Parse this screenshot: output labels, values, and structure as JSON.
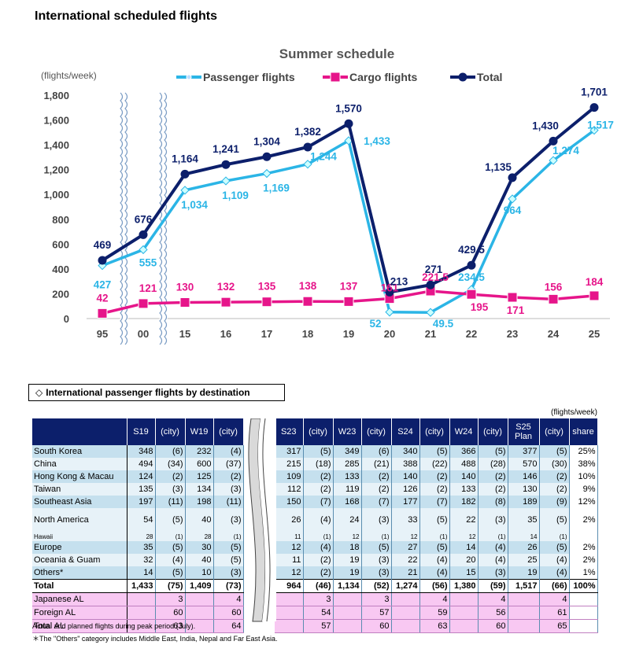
{
  "page_title": "International scheduled flights",
  "chart_data": {
    "type": "line",
    "title": "Summer schedule",
    "ylabel": "(flights/week)",
    "categories": [
      "95",
      "00",
      "15",
      "16",
      "17",
      "18",
      "19",
      "20",
      "21",
      "22",
      "23",
      "24",
      "25"
    ],
    "ylim": [
      0,
      1800
    ],
    "yticks": [
      "0",
      "200",
      "400",
      "600",
      "800",
      "1,000",
      "1,200",
      "1,400",
      "1,600",
      "1,800"
    ],
    "legend_position": "top",
    "grid": false,
    "series": [
      {
        "name": "Passenger flights",
        "color": "#2bb5e6",
        "values": [
          427,
          555,
          1034,
          1109,
          1169,
          1244,
          1433,
          52,
          49.5,
          234.5,
          964,
          1274,
          1517
        ],
        "labels": [
          "427",
          "555",
          "1,034",
          "1,109",
          "1,169",
          "1,244",
          "1,433",
          "52",
          "49.5",
          "234.5",
          "964",
          "1,274",
          "1,517"
        ]
      },
      {
        "name": "Cargo flights",
        "color": "#e6158a",
        "values": [
          42,
          121,
          130,
          132,
          135,
          138,
          137,
          161,
          221.5,
          195,
          171,
          156,
          184
        ],
        "labels": [
          "42",
          "121",
          "130",
          "132",
          "135",
          "138",
          "137",
          "161",
          "221.5",
          "195",
          "171",
          "156",
          "184"
        ]
      },
      {
        "name": "Total",
        "color": "#0c1f6b",
        "values": [
          469,
          676,
          1164,
          1241,
          1304,
          1382,
          1570,
          213,
          271,
          429.5,
          1135,
          1430,
          1701
        ],
        "labels": [
          "469",
          "676",
          "1,164",
          "1,241",
          "1,304",
          "1,382",
          "1,570",
          "213",
          "271",
          "429.5",
          "1,135",
          "1,430",
          "1,701"
        ]
      }
    ]
  },
  "table": {
    "caption": "International passenger flights by destination",
    "unit": "(flights/week)",
    "headers": [
      "",
      "S19",
      "(city)",
      "W19",
      "(city)",
      "",
      "S23",
      "(city)",
      "W23",
      "(city)",
      "S24",
      "(city)",
      "W24",
      "(city)",
      "S25\nPlan",
      "(city)",
      "share"
    ],
    "rows": [
      {
        "style": "blue",
        "cells": [
          "South Korea",
          "348",
          "(6)",
          "232",
          "(4)",
          "317",
          "(5)",
          "349",
          "(6)",
          "340",
          "(5)",
          "366",
          "(5)",
          "377",
          "(5)",
          "25%"
        ]
      },
      {
        "style": "white",
        "cells": [
          "China",
          "494",
          "(34)",
          "600",
          "(37)",
          "215",
          "(18)",
          "285",
          "(21)",
          "388",
          "(22)",
          "488",
          "(28)",
          "570",
          "(30)",
          "38%"
        ]
      },
      {
        "style": "blue",
        "cells": [
          "Hong Kong & Macau",
          "124",
          "(2)",
          "125",
          "(2)",
          "109",
          "(2)",
          "133",
          "(2)",
          "140",
          "(2)",
          "140",
          "(2)",
          "146",
          "(2)",
          "10%"
        ]
      },
      {
        "style": "white",
        "cells": [
          "Taiwan",
          "135",
          "(3)",
          "134",
          "(3)",
          "112",
          "(2)",
          "119",
          "(2)",
          "126",
          "(2)",
          "133",
          "(2)",
          "130",
          "(2)",
          "9%"
        ]
      },
      {
        "style": "blue",
        "cells": [
          "Southeast Asia",
          "197",
          "(11)",
          "198",
          "(11)",
          "150",
          "(7)",
          "168",
          "(7)",
          "177",
          "(7)",
          "182",
          "(8)",
          "189",
          "(9)",
          "12%"
        ]
      },
      {
        "style": "white tall",
        "cells": [
          "North America",
          "54",
          "(5)",
          "40",
          "(3)",
          "26",
          "(4)",
          "24",
          "(3)",
          "33",
          "(5)",
          "22",
          "(3)",
          "35",
          "(5)",
          "2%"
        ]
      },
      {
        "style": "white tiny",
        "cells": [
          "Hawaii",
          "28",
          "(1)",
          "28",
          "(1)",
          "11",
          "(1)",
          "12",
          "(1)",
          "12",
          "(1)",
          "12",
          "(1)",
          "14",
          "(1)",
          ""
        ]
      },
      {
        "style": "blue",
        "cells": [
          "Europe",
          "35",
          "(5)",
          "30",
          "(5)",
          "12",
          "(4)",
          "18",
          "(5)",
          "27",
          "(5)",
          "14",
          "(4)",
          "26",
          "(5)",
          "2%"
        ]
      },
      {
        "style": "white",
        "cells": [
          "Oceania & Guam",
          "32",
          "(4)",
          "40",
          "(5)",
          "11",
          "(2)",
          "19",
          "(3)",
          "22",
          "(4)",
          "20",
          "(4)",
          "25",
          "(4)",
          "2%"
        ]
      },
      {
        "style": "blue",
        "cells": [
          "Others*",
          "14",
          "(5)",
          "10",
          "(3)",
          "12",
          "(2)",
          "19",
          "(3)",
          "21",
          "(4)",
          "15",
          "(3)",
          "19",
          "(4)",
          "1%"
        ]
      },
      {
        "style": "total",
        "cells": [
          "Total",
          "1,433",
          "(75)",
          "1,409",
          "(73)",
          "964",
          "(46)",
          "1,134",
          "(52)",
          "1,274",
          "(56)",
          "1,380",
          "(59)",
          "1,517",
          "(66)",
          "100%"
        ]
      },
      {
        "style": "pink",
        "cells": [
          "Japanese AL",
          "",
          "3",
          "",
          "4",
          "",
          "3",
          "",
          "3",
          "",
          "4",
          "",
          "4",
          "",
          "4",
          ""
        ]
      },
      {
        "style": "pink",
        "cells": [
          "Foreign AL",
          "",
          "60",
          "",
          "60",
          "",
          "54",
          "",
          "57",
          "",
          "59",
          "",
          "56",
          "",
          "61",
          ""
        ]
      },
      {
        "style": "pink",
        "cells": [
          "Total AL",
          "",
          "63",
          "",
          "64",
          "",
          "57",
          "",
          "60",
          "",
          "63",
          "",
          "60",
          "",
          "65",
          ""
        ]
      }
    ]
  },
  "footnotes": [
    "Actual and planned flights during peak period (July).",
    "＊The \"Others\" category includes Middle East, India, Nepal and Far East Asia."
  ]
}
